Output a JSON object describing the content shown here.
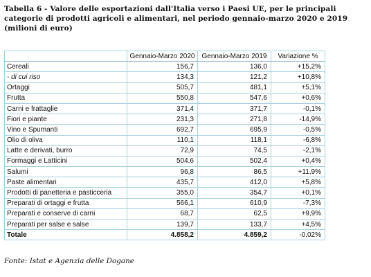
{
  "title": {
    "line1": "Tabella 6 - Valore delle esportazioni dall'Italia verso i Paesi UE, per le principali",
    "line2": "categorie di prodotti agricoli e alimentari, nel periodo gennaio-marzo 2020 e 2019",
    "line3": "(milioni di euro)"
  },
  "table": {
    "headers": [
      "",
      "Gennaio-Marzo 2020",
      "Gennaio-Marzo 2019",
      "Variazione %"
    ],
    "rows": [
      {
        "label": "Cereali",
        "v2020": "156,7",
        "v2019": "136,0",
        "var": "+15,2%"
      },
      {
        "label": "- di cui riso",
        "v2020": "134,3",
        "v2019": "121,2",
        "var": "+10,8%"
      },
      {
        "label": "Ortaggi",
        "v2020": "505,7",
        "v2019": "481,1",
        "var": "+5,1%"
      },
      {
        "label": "Frutta",
        "v2020": "550,8",
        "v2019": "547,6",
        "var": "+0,6%"
      },
      {
        "label": "Carni e frattaglie",
        "v2020": "371,4",
        "v2019": "371,7",
        "var": "-0,1%"
      },
      {
        "label": "Fiori e piante",
        "v2020": "231,3",
        "v2019": "271,8",
        "var": "-14,9%"
      },
      {
        "label": "Vino e Spumanti",
        "v2020": "692,7",
        "v2019": "695,9",
        "var": "-0,5%"
      },
      {
        "label": "Olio di oliva",
        "v2020": "110,1",
        "v2019": "118,1",
        "var": "-6,8%"
      },
      {
        "label": "Latte e derivati, burro",
        "v2020": "72,9",
        "v2019": "74,5",
        "var": "-2,1%"
      },
      {
        "label": "Formaggi e Latticini",
        "v2020": "504,6",
        "v2019": "502,4",
        "var": "+0,4%"
      },
      {
        "label": "Salumi",
        "v2020": "96,8",
        "v2019": "86,5",
        "var": "+11,9%"
      },
      {
        "label": "Paste alimentari",
        "v2020": "435,7",
        "v2019": "412,0",
        "var": "+5,8%"
      },
      {
        "label": "Prodotti di panetteria e pasticceria",
        "v2020": "355,0",
        "v2019": "354,7",
        "var": "+0,1%"
      },
      {
        "label": "Preparati di ortaggi e frutta",
        "v2020": "566,1",
        "v2019": "610,9",
        "var": "-7,3%"
      },
      {
        "label": "Preparati e conserve di carni",
        "v2020": "68,7",
        "v2019": "62,5",
        "var": "+9,9%"
      },
      {
        "label": "Preparati per salse e salse",
        "v2020": "139,7",
        "v2019": "133,7",
        "var": "+4,5%"
      }
    ],
    "total": {
      "label": "Totale",
      "v2020": "4.858,2",
      "v2019": "4.859,2",
      "var": "-0,02%"
    }
  },
  "source": "Fonte: Istat e Agenzia delle Dogane"
}
